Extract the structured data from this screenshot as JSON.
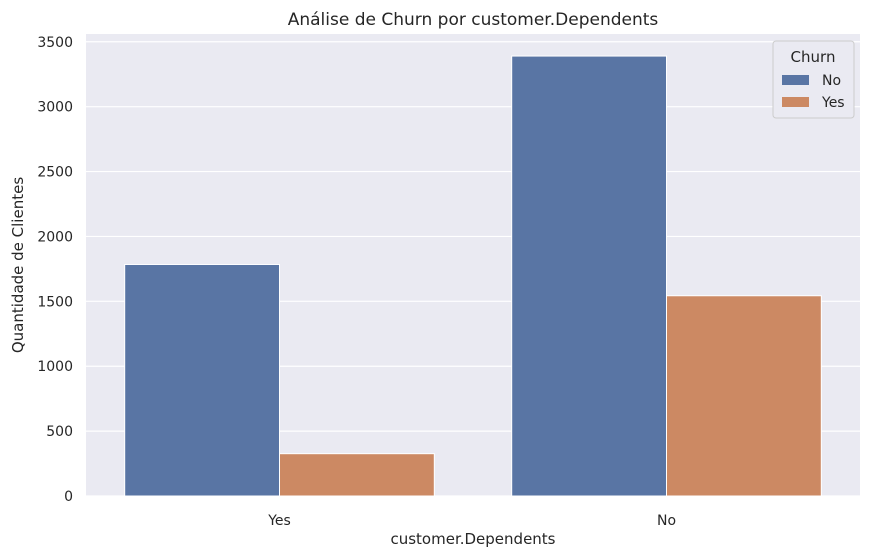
{
  "chart_data": {
    "type": "bar",
    "title": "Análise de Churn por customer.Dependents",
    "xlabel": "customer.Dependents",
    "ylabel": "Quantidade de Clientes",
    "categories": [
      "Yes",
      "No"
    ],
    "series": [
      {
        "name": "No",
        "values": [
          1784,
          3390
        ],
        "color": "#5975a4"
      },
      {
        "name": "Yes",
        "values": [
          326,
          1543
        ],
        "color": "#cc8963"
      }
    ],
    "ylim": [
      0,
      3560
    ],
    "yticks": [
      0,
      500,
      1000,
      1500,
      2000,
      2500,
      3000,
      3500
    ],
    "grid": true,
    "legend": {
      "title": "Churn",
      "position": "top-right"
    }
  },
  "style": {
    "plot_background": "#eaeaf2",
    "grid_color": "#ffffff"
  }
}
